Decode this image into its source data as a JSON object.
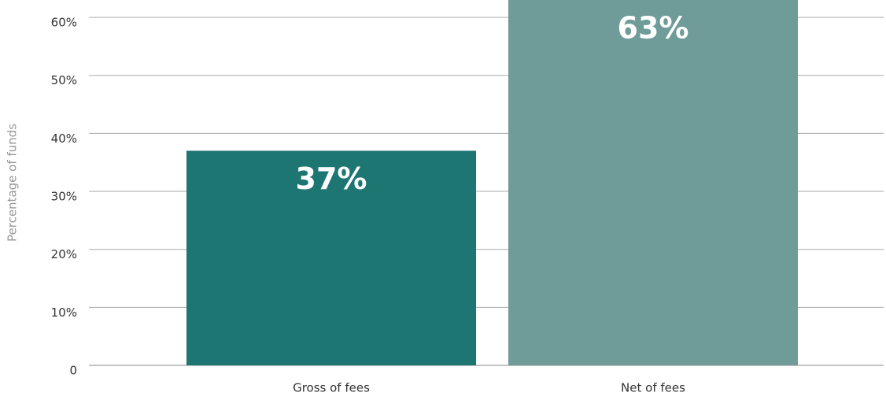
{
  "chart_data": {
    "type": "bar",
    "y_label": "Percentage of funds",
    "categories": [
      "Gross of fees",
      "Net of fees"
    ],
    "values": [
      37,
      63
    ],
    "value_labels": [
      "37%",
      "63%"
    ],
    "colors": [
      "#1e7673",
      "#6f9b99"
    ],
    "ylim": [
      0,
      63
    ],
    "yticks": [
      0,
      {
        "value": 10,
        "label": "10%"
      },
      {
        "value": 20,
        "label": "20%"
      },
      {
        "value": 30,
        "label": "30%"
      },
      {
        "value": 40,
        "label": "40%"
      },
      {
        "value": 50,
        "label": "50%"
      },
      {
        "value": 60,
        "label": "60%"
      }
    ],
    "grid": true
  }
}
